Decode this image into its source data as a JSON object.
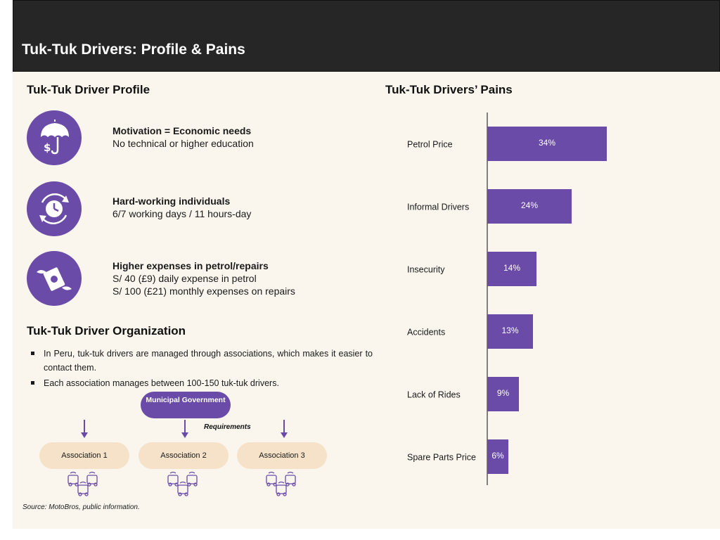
{
  "header": {
    "title": "Tuk-Tuk Drivers: Profile & Pains"
  },
  "profile": {
    "title": "Tuk-Tuk Driver Profile",
    "items": [
      {
        "icon": "umbrella-dollar-icon",
        "bold": "Motivation = Economic needs",
        "lines": [
          "No technical or higher education"
        ]
      },
      {
        "icon": "clock-cycle-icon",
        "bold": "Hard-working individuals",
        "lines": [
          "6/7 working days / 11 hours-day"
        ]
      },
      {
        "icon": "flying-money-icon",
        "bold": "Higher expenses in petrol/repairs",
        "lines": [
          "S/ 40 (£9)  daily expense in petrol",
          "S/ 100 (£21)  monthly expenses on repairs"
        ]
      }
    ]
  },
  "organization": {
    "title": "Tuk-Tuk Driver Organization",
    "bullets": [
      "In Peru, tuk-tuk drivers are managed through associations, which makes it easier to contact them.",
      "Each association manages between 100-150 tuk-tuk drivers."
    ],
    "government": "Municipal Government",
    "requirements_label": "Requirements",
    "associations": [
      "Association 1",
      "Association 2",
      "Association 3"
    ]
  },
  "source": "Source: MotoBros, public information.",
  "colors": {
    "accent": "#6a4ba8",
    "association": "#f5e2c8",
    "header": "#262626",
    "background": "#faf6ee"
  },
  "chart_data": {
    "type": "bar",
    "orientation": "horizontal",
    "title": "Tuk-Tuk Drivers’ Pains",
    "categories": [
      "Petrol Price",
      "Informal Drivers",
      "Insecurity",
      "Accidents",
      "Lack of Rides",
      "Spare Parts Price"
    ],
    "values": [
      34,
      24,
      14,
      13,
      9,
      6
    ],
    "labels": [
      "34%",
      "24%",
      "14%",
      "13%",
      "9%",
      "6%"
    ],
    "xlim": [
      0,
      60
    ],
    "grid": false,
    "legend": "none"
  }
}
